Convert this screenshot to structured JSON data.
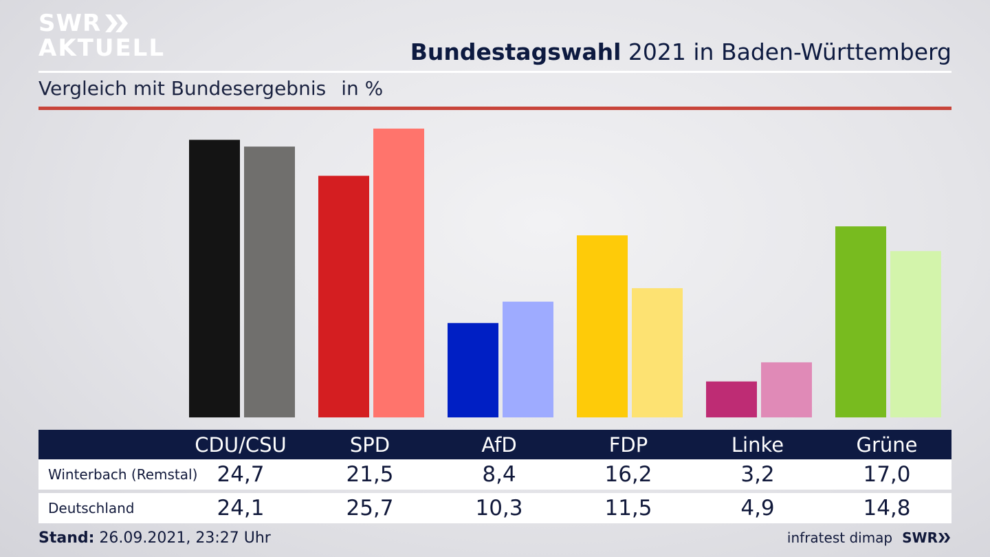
{
  "brand": {
    "line1": "SWR",
    "line2": "AKTUELL",
    "footer_brand": "SWR"
  },
  "header": {
    "title_bold": "Bundestagswahl",
    "title_rest": "2021 in Baden-Württemberg",
    "subtitle": "Vergleich mit Bundesergebnis",
    "unit": "in %"
  },
  "table": {
    "rows": [
      {
        "label": "Winterbach (Remstal)",
        "values": [
          "24,7",
          "21,5",
          "8,4",
          "16,2",
          "3,2",
          "17,0"
        ]
      },
      {
        "label": "Deutschland",
        "values": [
          "24,1",
          "25,7",
          "10,3",
          "11,5",
          "4,9",
          "14,8"
        ]
      }
    ]
  },
  "footer": {
    "stand_label": "Stand:",
    "stand_value": "26.09.2021, 23:27 Uhr",
    "source": "infratest dimap"
  },
  "colors": {
    "winterbach": [
      "#141414",
      "#d41e21",
      "#001fc4",
      "#fecb09",
      "#be2c74",
      "#78bb1f"
    ],
    "deutschland": [
      "#706f6d",
      "#ff746c",
      "#9eabff",
      "#fde272",
      "#e08ab7",
      "#d3f4ab"
    ]
  },
  "chart_data": {
    "type": "bar",
    "categories": [
      "CDU/CSU",
      "SPD",
      "AfD",
      "FDP",
      "Linke",
      "Grüne"
    ],
    "series": [
      {
        "name": "Winterbach (Remstal)",
        "values": [
          24.7,
          21.5,
          8.4,
          16.2,
          3.2,
          17.0
        ]
      },
      {
        "name": "Deutschland",
        "values": [
          24.1,
          25.7,
          10.3,
          11.5,
          4.9,
          14.8
        ]
      }
    ],
    "title": "Bundestagswahl 2021 in Baden-Württemberg",
    "subtitle": "Vergleich mit Bundesergebnis",
    "ylabel": "in %",
    "ylim": [
      0,
      25.7
    ],
    "grid": false
  }
}
